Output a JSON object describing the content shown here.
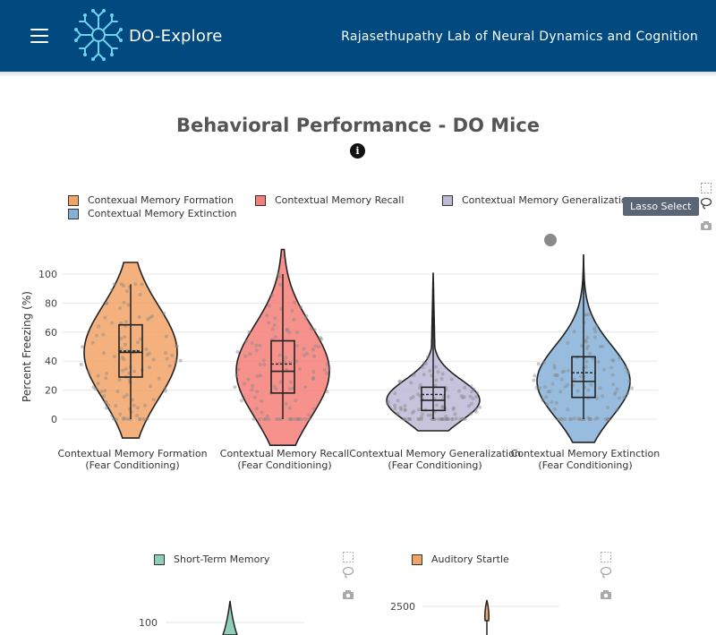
{
  "header": {
    "app_title": "DO-Explore",
    "lab_name": "Rajasethupathy Lab of Neural Dynamics and Cognition",
    "bg_color": "#004a80"
  },
  "main_chart": {
    "title": "Behavioral Performance - DO Mice",
    "info_symbol": "i",
    "tooltip": "Lasso Select",
    "legend": [
      {
        "label": "Contexual Memory Formation",
        "color": "#f2a366"
      },
      {
        "label": "Contextual Memory Recall",
        "color": "#f47e78"
      },
      {
        "label": "Contextual Memory Generalization",
        "color": "#bdb8d7"
      },
      {
        "label": "Contextual Memory Extinction",
        "color": "#85b0d8"
      }
    ]
  },
  "chart_data": [
    {
      "type": "violin",
      "ylabel": "Percent Freezing (%)",
      "ylim": [
        -15,
        120
      ],
      "yticks": [
        0,
        20,
        40,
        60,
        80,
        100
      ],
      "categories": [
        [
          "Contextual Memory Formation",
          "(Fear Conditioning)"
        ],
        [
          "Contextual Memory Recall",
          "(Fear Conditioning)"
        ],
        [
          "Contextual Memory Generalization",
          "(Fear Conditioning)"
        ],
        [
          "Contextual Memory Extinction",
          "(Fear Conditioning)"
        ]
      ],
      "series": [
        {
          "name": "Contexual Memory Formation",
          "color": "#f2a366",
          "min": 0,
          "q1": 29,
          "median": 46,
          "mean": 47,
          "q3": 65,
          "max": 93,
          "kde_min": -13,
          "kde_max": 108
        },
        {
          "name": "Contextual Memory Recall",
          "color": "#f47e78",
          "min": 0,
          "q1": 18,
          "median": 33,
          "mean": 38,
          "q3": 54,
          "max": 100,
          "kde_min": -18,
          "kde_max": 117
        },
        {
          "name": "Contextual Memory Generalization",
          "color": "#bdb8d7",
          "min": 0,
          "q1": 6,
          "median": 13,
          "mean": 17,
          "q3": 22,
          "max": 98,
          "kde_min": -8,
          "kde_max": 101
        },
        {
          "name": "Contextual Memory Extinction",
          "color": "#85b0d8",
          "min": 0,
          "q1": 15,
          "median": 26,
          "mean": 32,
          "q3": 43,
          "max": 98,
          "kde_min": -16,
          "kde_max": 113
        }
      ]
    },
    {
      "type": "violin",
      "legend": "Short-Term Memory",
      "color": "#8fcfb7",
      "yticks": [
        100
      ]
    },
    {
      "type": "violin",
      "legend": "Auditory Startle",
      "color": "#f2a366",
      "yticks": [
        2500
      ]
    }
  ]
}
